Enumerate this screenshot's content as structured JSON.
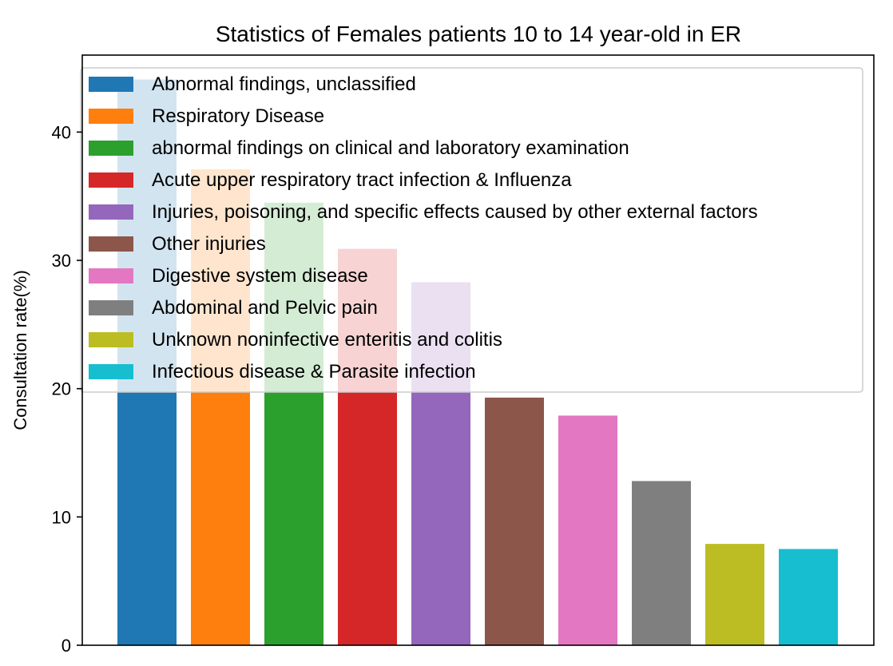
{
  "chart_data": {
    "type": "bar",
    "title": "Statistics of Females patients 10 to 14 year-old in ER",
    "xlabel": "",
    "ylabel": "Consultation rate(%)",
    "ylim": [
      0,
      46
    ],
    "yticks": [
      0,
      10,
      20,
      30,
      40
    ],
    "legend_position": "top",
    "categories": [
      "Abnormal findings, unclassified",
      "Respiratory Disease",
      "abnormal findings on clinical and laboratory examination",
      "Acute upper respiratory tract infection & Influenza",
      "Injuries, poisoning, and specific effects caused by other external factors",
      "Other injuries",
      "Digestive system disease",
      "Abdominal and Pelvic pain",
      "Unknown noninfective enteritis and colitis",
      "Infectious disease & Parasite infection"
    ],
    "values": [
      44.1,
      37.1,
      34.5,
      30.9,
      28.3,
      19.3,
      17.9,
      12.8,
      7.9,
      7.5
    ],
    "colors": [
      "#1f77b4",
      "#ff7f0e",
      "#2ca02c",
      "#d62728",
      "#9467bd",
      "#8c564b",
      "#e377c2",
      "#7f7f7f",
      "#bcbd22",
      "#17becf"
    ]
  }
}
